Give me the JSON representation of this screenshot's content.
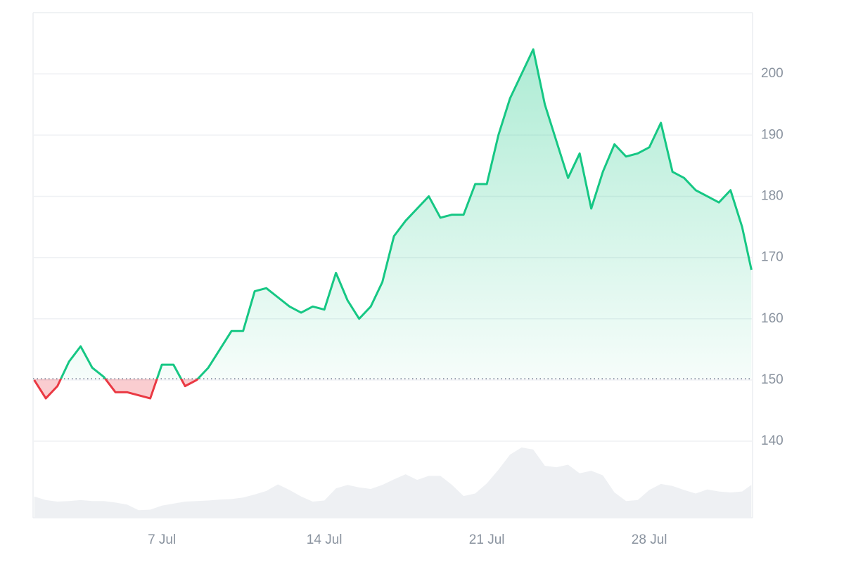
{
  "chart_data": {
    "type": "line",
    "x": [
      1.5,
      2,
      2.5,
      3,
      3.5,
      4,
      4.5,
      5,
      5.5,
      6,
      6.5,
      7,
      7.5,
      8,
      8.5,
      9,
      9.5,
      10,
      10.5,
      11,
      11.5,
      12,
      12.5,
      13,
      13.5,
      14,
      14.5,
      15,
      15.5,
      16,
      16.5,
      17,
      17.5,
      18,
      18.5,
      19,
      19.5,
      20,
      20.5,
      21,
      21.5,
      22,
      22.5,
      23,
      23.5,
      24,
      24.5,
      25,
      25.5,
      26,
      26.5,
      27,
      27.5,
      28,
      28.5,
      29,
      29.5,
      30,
      30.5,
      31,
      31.5,
      32,
      32.4
    ],
    "series": [
      {
        "color": "#16c784",
        "down_color": "#ea3943",
        "values": [
          150,
          147,
          149,
          153,
          155.5,
          152,
          150.5,
          148,
          148,
          147.5,
          147,
          152.5,
          152.5,
          149,
          150,
          152,
          155,
          158,
          158,
          164.5,
          165,
          163.5,
          162,
          161,
          162,
          161.5,
          167.5,
          163,
          160,
          162,
          166,
          173.5,
          176,
          178,
          180,
          176.5,
          177,
          177,
          182,
          182,
          190,
          196,
          200,
          204,
          195,
          189,
          183,
          187,
          178,
          184,
          188.5,
          186.5,
          187,
          188,
          192,
          184,
          183,
          181,
          180,
          179,
          181,
          175,
          168
        ]
      },
      {
        "color": "#eef0f3",
        "axis": "y2",
        "values": [
          4.2,
          3.5,
          3.2,
          3.3,
          3.5,
          3.3,
          3.3,
          3.0,
          2.6,
          1.5,
          1.6,
          2.4,
          2.8,
          3.2,
          3.3,
          3.4,
          3.6,
          3.7,
          4.0,
          4.6,
          5.3,
          6.6,
          5.5,
          4.2,
          3.2,
          3.4,
          5.8,
          6.5,
          6.0,
          5.7,
          6.5,
          7.6,
          8.6,
          7.5,
          8.3,
          8.3,
          6.5,
          4.3,
          4.8,
          6.8,
          9.5,
          12.5,
          13.9,
          13.5,
          10.3,
          10.0,
          10.5,
          8.8,
          9.3,
          8.4,
          5.0,
          3.3,
          3.5,
          5.5,
          6.7,
          6.3,
          5.5,
          4.8,
          5.6,
          5.2,
          5.0,
          5.2,
          6.5
        ]
      }
    ],
    "baseline": 150.2,
    "xlim": [
      1.45,
      32.45
    ],
    "xticks": [
      {
        "value": 7,
        "label": "7 Jul"
      },
      {
        "value": 14,
        "label": "14 Jul"
      },
      {
        "value": 21,
        "label": "21 Jul"
      },
      {
        "value": 28,
        "label": "28 Jul"
      }
    ],
    "ylim": [
      127.5,
      210
    ],
    "yticks": [
      140,
      150,
      160,
      170,
      180,
      190,
      200
    ],
    "y2lim": [
      0,
      100
    ],
    "grid": true
  }
}
